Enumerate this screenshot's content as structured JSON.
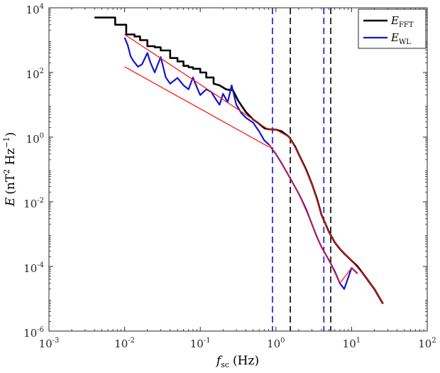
{
  "chart_data": {
    "type": "line",
    "scale": {
      "x": "log",
      "y": "log"
    },
    "xlim": [
      0.001,
      100
    ],
    "ylim": [
      1e-06,
      10000
    ],
    "x_ticks": [
      {
        "value": 0.001,
        "base": "10",
        "exp": "-3"
      },
      {
        "value": 0.01,
        "base": "10",
        "exp": "-2"
      },
      {
        "value": 0.1,
        "base": "10",
        "exp": "-1"
      },
      {
        "value": 1,
        "base": "10",
        "exp": "0"
      },
      {
        "value": 10,
        "base": "10",
        "exp": "1"
      },
      {
        "value": 100,
        "base": "10",
        "exp": "2"
      }
    ],
    "y_ticks": [
      {
        "value": 1e-06,
        "base": "10",
        "exp": "-6"
      },
      {
        "value": 0.0001,
        "base": "10",
        "exp": "-4"
      },
      {
        "value": 0.01,
        "base": "10",
        "exp": "-2"
      },
      {
        "value": 1,
        "base": "10",
        "exp": "0"
      },
      {
        "value": 100,
        "base": "10",
        "exp": "2"
      },
      {
        "value": 10000,
        "base": "10",
        "exp": "4"
      }
    ],
    "xlabel": {
      "symbol": "f",
      "sub": "sc",
      "unit": "(Hz)"
    },
    "ylabel": {
      "symbol": "E",
      "unit_prefix": "(nT",
      "sup1": "2",
      "mid": " Hz",
      "sup2": "−1",
      "close": ")"
    },
    "grid": false,
    "legend": {
      "placement": "top-right",
      "entries": [
        {
          "symbol": "E",
          "sub": "FFT",
          "color": "#000000"
        },
        {
          "symbol": "E",
          "sub": "WL",
          "color": "#1414d2"
        }
      ]
    },
    "series": [
      {
        "name": "E_FFT",
        "color": "#000000",
        "width": 2.6,
        "step": true,
        "x": [
          0.004,
          0.0075,
          0.0105,
          0.0135,
          0.016,
          0.02,
          0.025,
          0.03,
          0.04,
          0.05,
          0.06,
          0.07,
          0.08,
          0.1,
          0.12,
          0.15,
          0.18,
          0.22,
          0.27,
          0.32,
          0.4,
          0.5,
          0.6,
          0.7,
          0.8,
          1.0,
          1.2,
          1.5,
          1.8,
          2.0,
          2.5,
          3.0,
          3.5,
          4.0,
          5.0,
          6.0,
          7.0,
          8.0,
          10.0,
          12.0,
          15.0,
          20.0,
          26.0
        ],
        "y": [
          5000,
          3000,
          1500,
          1300,
          1000,
          650,
          600,
          480,
          280,
          220,
          160,
          145,
          130,
          100,
          70,
          45,
          40,
          30,
          28,
          13,
          6,
          3.5,
          2.6,
          1.9,
          1.75,
          1.7,
          1.5,
          1.0,
          0.5,
          0.3,
          0.1,
          0.035,
          0.012,
          0.004,
          0.0012,
          0.00055,
          0.00035,
          0.00025,
          0.00015,
          0.0001,
          5e-05,
          2e-05,
          7e-06
        ]
      },
      {
        "name": "E_WL",
        "color": "#1414d2",
        "width": 2.2,
        "step": false,
        "x": [
          0.01,
          0.011,
          0.012,
          0.013,
          0.015,
          0.017,
          0.02,
          0.022,
          0.025,
          0.028,
          0.03,
          0.035,
          0.04,
          0.05,
          0.06,
          0.07,
          0.08,
          0.09,
          0.1,
          0.12,
          0.14,
          0.16,
          0.18,
          0.2,
          0.23,
          0.26,
          0.3,
          0.35,
          0.4,
          0.5,
          0.6,
          0.7,
          0.8,
          1.0,
          1.2,
          1.5,
          2.0,
          2.5,
          3.0,
          3.5,
          4.0,
          5.0,
          6.0,
          7.0,
          8.0,
          10.0,
          12.0
        ],
        "y": [
          1200,
          700,
          320,
          230,
          150,
          180,
          400,
          200,
          100,
          200,
          300,
          70,
          45,
          68,
          40,
          30,
          70,
          35,
          20,
          30,
          25,
          15,
          10,
          22,
          12,
          40,
          10,
          5.5,
          4.0,
          2.8,
          1.5,
          0.8,
          0.6,
          0.3,
          0.15,
          0.06,
          0.018,
          0.006,
          0.002,
          0.0008,
          0.0004,
          0.00016,
          7e-05,
          3e-05,
          2e-05,
          9e-05,
          6e-05
        ]
      },
      {
        "name": "fit-fft-low",
        "color": "#ff1a1a",
        "width": 1.3,
        "step": false,
        "x": [
          0.01,
          0.8
        ],
        "y": [
          1500,
          1.7
        ]
      },
      {
        "name": "fit-wl-low",
        "color": "#ff1a1a",
        "width": 1.3,
        "step": false,
        "x": [
          0.01,
          0.8
        ],
        "y": [
          150,
          0.5
        ]
      },
      {
        "name": "fit-fft-high",
        "color": "#ff1a1a",
        "width": 1.3,
        "step": false,
        "x": [
          0.8,
          1.0,
          1.5,
          2.0,
          3.0,
          4.0,
          5.0,
          6.0,
          8.0,
          10.0,
          15.0,
          20.0,
          26.0
        ],
        "y": [
          1.75,
          1.7,
          1.0,
          0.3,
          0.035,
          0.004,
          0.0012,
          0.00055,
          0.00025,
          0.00015,
          5e-05,
          2e-05,
          7e-06
        ]
      },
      {
        "name": "fit-wl-high",
        "color": "#ff1a1a",
        "width": 1.3,
        "step": false,
        "x": [
          0.8,
          1.0,
          1.5,
          2.0,
          3.0,
          4.0,
          5.0,
          7.0,
          10.0,
          12.0
        ],
        "y": [
          0.6,
          0.3,
          0.06,
          0.018,
          0.002,
          0.0004,
          0.00016,
          3e-05,
          9e-05,
          6e-05
        ]
      }
    ],
    "vlines": [
      {
        "x": 0.9,
        "color": "#1414d2"
      },
      {
        "x": 1.55,
        "color": "#000000"
      },
      {
        "x": 4.3,
        "color": "#1414d2"
      },
      {
        "x": 5.3,
        "color": "#000000"
      }
    ]
  }
}
